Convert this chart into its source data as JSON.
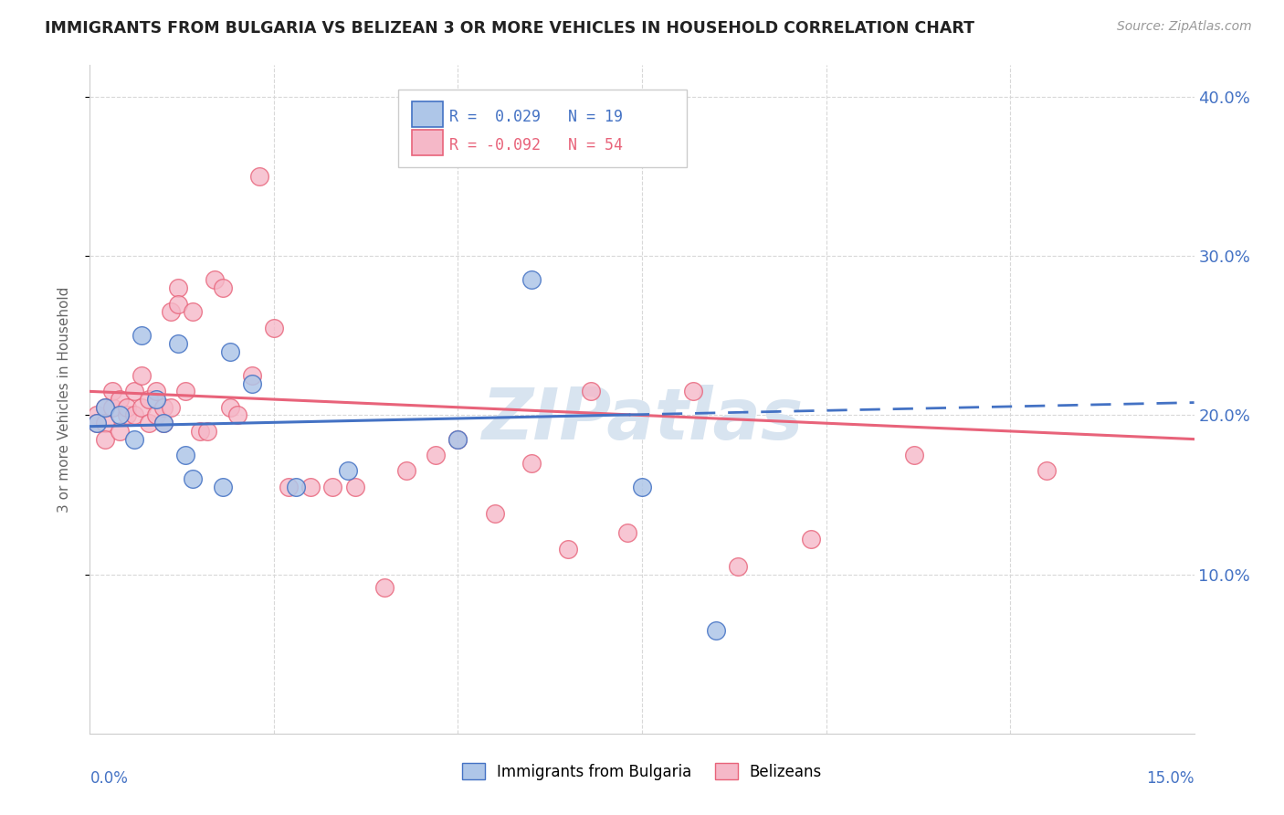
{
  "title": "IMMIGRANTS FROM BULGARIA VS BELIZEAN 3 OR MORE VEHICLES IN HOUSEHOLD CORRELATION CHART",
  "source": "Source: ZipAtlas.com",
  "ylabel": "3 or more Vehicles in Household",
  "xlim": [
    0.0,
    0.15
  ],
  "ylim": [
    0.0,
    0.42
  ],
  "bulgaria_R": 0.029,
  "bulgaria_N": 19,
  "belizean_R": -0.092,
  "belizean_N": 54,
  "bulgaria_color": "#aec6e8",
  "belizean_color": "#f5b8c8",
  "bulgaria_line_color": "#4472c4",
  "belizean_line_color": "#e8637a",
  "bulgaria_x": [
    0.001,
    0.002,
    0.004,
    0.006,
    0.007,
    0.009,
    0.01,
    0.012,
    0.013,
    0.014,
    0.018,
    0.019,
    0.022,
    0.028,
    0.035,
    0.05,
    0.06,
    0.075,
    0.085
  ],
  "bulgaria_y": [
    0.195,
    0.205,
    0.2,
    0.185,
    0.25,
    0.21,
    0.195,
    0.245,
    0.175,
    0.16,
    0.155,
    0.24,
    0.22,
    0.155,
    0.165,
    0.185,
    0.285,
    0.155,
    0.065
  ],
  "belizean_x": [
    0.001,
    0.001,
    0.002,
    0.002,
    0.002,
    0.003,
    0.003,
    0.004,
    0.004,
    0.005,
    0.005,
    0.006,
    0.006,
    0.007,
    0.007,
    0.008,
    0.008,
    0.009,
    0.009,
    0.01,
    0.01,
    0.011,
    0.011,
    0.012,
    0.012,
    0.013,
    0.014,
    0.015,
    0.016,
    0.017,
    0.018,
    0.019,
    0.02,
    0.022,
    0.023,
    0.025,
    0.027,
    0.03,
    0.033,
    0.036,
    0.04,
    0.043,
    0.047,
    0.05,
    0.055,
    0.06,
    0.065,
    0.068,
    0.073,
    0.082,
    0.088,
    0.098,
    0.112,
    0.13
  ],
  "belizean_y": [
    0.2,
    0.195,
    0.205,
    0.195,
    0.185,
    0.205,
    0.215,
    0.19,
    0.21,
    0.2,
    0.205,
    0.215,
    0.2,
    0.225,
    0.205,
    0.195,
    0.21,
    0.2,
    0.215,
    0.195,
    0.205,
    0.265,
    0.205,
    0.28,
    0.27,
    0.215,
    0.265,
    0.19,
    0.19,
    0.285,
    0.28,
    0.205,
    0.2,
    0.225,
    0.35,
    0.255,
    0.155,
    0.155,
    0.155,
    0.155,
    0.092,
    0.165,
    0.175,
    0.185,
    0.138,
    0.17,
    0.116,
    0.215,
    0.126,
    0.215,
    0.105,
    0.122,
    0.175,
    0.165
  ],
  "watermark": "ZIPatlas",
  "watermark_color": "#d8e4f0",
  "background_color": "#ffffff",
  "grid_color": "#d8d8d8"
}
